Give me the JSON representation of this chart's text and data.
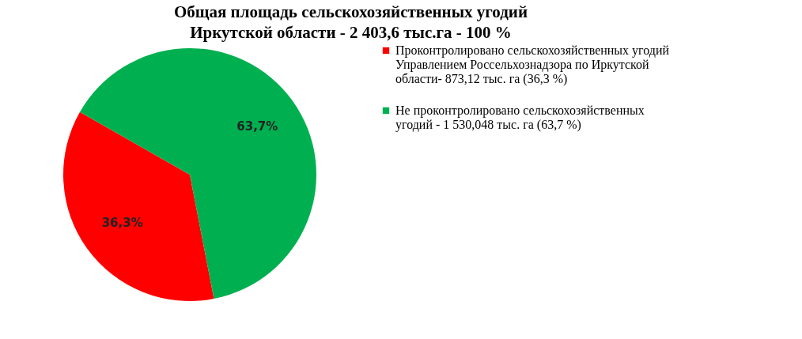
{
  "chart_data": {
    "type": "pie",
    "title": "Общая площадь сельскохозяйственных угодий Иркутской области - 2 403,6 тыс.га - 100 %",
    "categories": [
      "Проконтролировано сельскохозяйственных угодий Управлением Россельхознадзора по Иркутской области- 873,12 тыс. га  (36,3 %)",
      "Не проконтролировано сельскохозяйственных угодий  - 1 530,048 тыс. га (63,7 %)"
    ],
    "values": [
      36.3,
      63.7
    ],
    "value_labels": [
      "36,3%",
      "63,7%"
    ],
    "colors": [
      "#ff0000",
      "#00b050"
    ],
    "legend": "right"
  }
}
